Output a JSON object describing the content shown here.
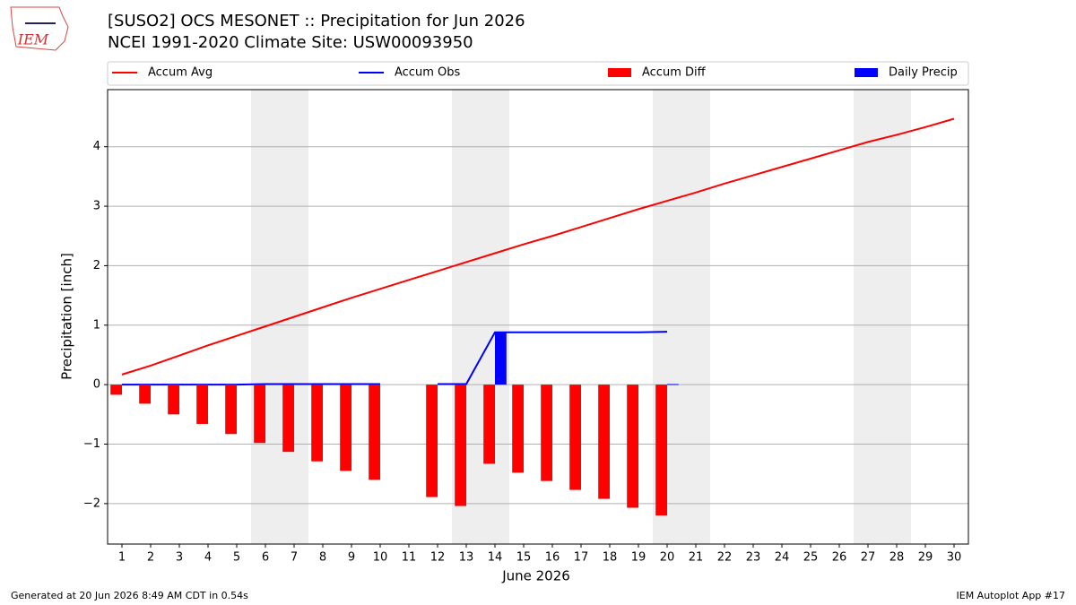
{
  "logo": {
    "text": "IEM"
  },
  "chart_data": {
    "type": "line",
    "title": "[SUSO2] OCS MESONET :: Precipitation for Jun 2026",
    "subtitle": "NCEI 1991-2020 Climate Site: USW00093950",
    "y_label": "Precipitation [inch]",
    "x_label": "June 2026",
    "x": [
      1,
      2,
      3,
      4,
      5,
      6,
      7,
      8,
      9,
      10,
      11,
      12,
      13,
      14,
      15,
      16,
      17,
      18,
      19,
      20,
      21,
      22,
      23,
      24,
      25,
      26,
      27,
      28,
      29,
      30
    ],
    "xlim": [
      0.5,
      30.5
    ],
    "xticks": [
      1,
      2,
      3,
      4,
      5,
      6,
      7,
      8,
      9,
      10,
      11,
      12,
      13,
      14,
      15,
      16,
      17,
      18,
      19,
      20,
      21,
      22,
      23,
      24,
      25,
      26,
      27,
      28,
      29,
      30
    ],
    "ylim": [
      -2.68,
      4.96
    ],
    "yticks": [
      {
        "value": -2,
        "label": "−2"
      },
      {
        "value": -1,
        "label": "−1"
      },
      0,
      1,
      2,
      3,
      4
    ],
    "grid": true,
    "shaded_spans": [
      [
        5.5,
        7.5
      ],
      [
        12.5,
        14.5
      ],
      [
        19.5,
        21.5
      ],
      [
        26.5,
        28.5
      ]
    ],
    "shade_color": "#eeeeee",
    "series": [
      {
        "name": "Accum Avg",
        "color": "#ff0000",
        "kind": "line",
        "values": [
          0.17,
          0.32,
          0.49,
          0.66,
          0.82,
          0.98,
          1.14,
          1.3,
          1.46,
          1.61,
          1.76,
          1.91,
          2.06,
          2.21,
          2.36,
          2.5,
          2.65,
          2.8,
          2.95,
          3.09,
          3.23,
          3.38,
          3.52,
          3.66,
          3.8,
          3.94,
          4.08,
          4.2,
          4.33,
          4.47
        ]
      },
      {
        "name": "Accum Obs",
        "color": "#0000ff",
        "kind": "line",
        "values": [
          0,
          0,
          0,
          0,
          0,
          0.01,
          0.01,
          0.01,
          0.01,
          0.01,
          null,
          0.01,
          0.01,
          0.88,
          0.88,
          0.88,
          0.88,
          0.88,
          0.88,
          0.89,
          null,
          null,
          null,
          null,
          null,
          null,
          null,
          null,
          null,
          null
        ]
      },
      {
        "name": "Accum Diff",
        "color": "#ff0000",
        "kind": "bar",
        "offset": "left",
        "values": [
          -0.17,
          -0.32,
          -0.5,
          -0.66,
          -0.83,
          -0.98,
          -1.13,
          -1.29,
          -1.45,
          -1.6,
          null,
          -1.89,
          -2.04,
          -1.33,
          -1.48,
          -1.62,
          -1.77,
          -1.92,
          -2.07,
          -2.2,
          null,
          null,
          null,
          null,
          null,
          null,
          null,
          null,
          null,
          null
        ]
      },
      {
        "name": "Daily Precip",
        "color": "#0000ff",
        "kind": "bar",
        "offset": "right",
        "values": [
          0,
          0,
          0,
          0,
          0,
          0,
          0,
          0,
          0,
          0,
          null,
          0,
          0,
          0.88,
          0,
          0,
          0,
          0,
          0,
          0.01,
          null,
          null,
          null,
          null,
          null,
          null,
          null,
          null,
          null,
          null
        ]
      }
    ]
  },
  "footer": {
    "left": "Generated at 20 Jun 2026 8:49 AM CDT in 0.54s",
    "right": "IEM Autoplot App #17"
  }
}
